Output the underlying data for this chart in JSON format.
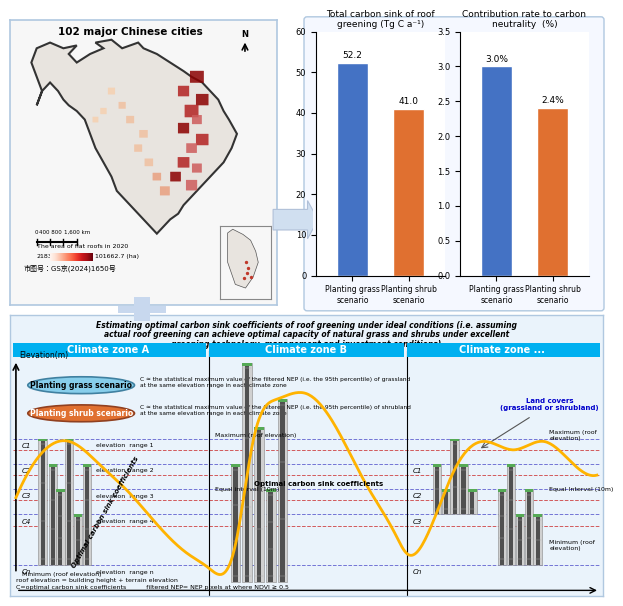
{
  "bar1_values": [
    52.2,
    41.0
  ],
  "bar1_colors": [
    "#4472C4",
    "#E07030"
  ],
  "bar1_labels": [
    "Planting grass\nscenario",
    "Planting shrub\nscenario"
  ],
  "bar1_title": "Total carbon sink of roof\ngreening (Tg C a⁻¹)",
  "bar1_ylim": [
    0,
    60
  ],
  "bar1_yticks": [
    0,
    10,
    20,
    30,
    40,
    50,
    60
  ],
  "bar1_annotations": [
    "52.2",
    "41.0"
  ],
  "bar2_values": [
    3.0,
    2.4
  ],
  "bar2_colors": [
    "#4472C4",
    "#E07030"
  ],
  "bar2_labels": [
    "Planting grass\nscenario",
    "Planting shrub\nscenario"
  ],
  "bar2_title": "Contribution rate to carbon\nneutrality  (%)",
  "bar2_ylim": [
    0,
    3.5
  ],
  "bar2_yticks": [
    0.0,
    0.5,
    1.0,
    1.5,
    2.0,
    2.5,
    3.0,
    3.5
  ],
  "bar2_annotations": [
    "3.0%",
    "2.4%"
  ],
  "map_title": "102 major Chinese cities",
  "map_credit": "市图号：GS京(2024)1650号",
  "bottom_title_line1": "Estimating optimal carbon sink coefficients of roof greening under ideal conditions (i.e. assuming",
  "bottom_title_line2": "actual roof greening can achieve optimal capacity of natural grass and shrubs under excellent",
  "bottom_title_line3": "greening technology, management and investment conditions)",
  "climate_a": "Climate zone A",
  "climate_b": "Climate zone B",
  "climate_c": "Climate zone ...",
  "grass_label": "Planting grass scenario",
  "shrub_label": "Planting shrub scenario",
  "grass_desc": "C ≈ the statistical maximum value of the filtered NEP (i.e. the 95th percentile) of grassland\nat the same elevation range in each climate zone",
  "shrub_desc": "C ≈ the statistical maximum value of the filtered NEP (i.e. the 95th percentile) of shrubland\nat the same elevation range in each climate zone",
  "elevation_label": "Elevation(m)",
  "land_cover_label": "Land covers\n(grassland or shrubland)",
  "elev_labels": [
    "elevation  range 1",
    "elevation  range 2",
    "elevation  range 3",
    "elevation  range 4",
    "elevation  range n"
  ],
  "C_labels_left": [
    "C1",
    "C2",
    "C3",
    "C4",
    "Cn"
  ],
  "C_labels_right": [
    "C1",
    "C2",
    "C3",
    "Cn"
  ],
  "max_label": "Maximum (roof elevation)",
  "equal_interval": "Equal interval (10m)",
  "min_label": "Minimum (roof elevation)",
  "max_label_r": "Maximum (roof\nelevation)",
  "equal_interval_r": "Equal Interval (10m)",
  "min_label_r": "Minimum (roof\nelevation)",
  "optimal_label_b": "Optimal carbon sink coefficients",
  "optimal_rotated": "Optimal carbon sink coefficients",
  "footer1": "roof elevation = building height + terrain elevation",
  "footer2": "C=optimal carbon sink coefficients          filtered NEP= NEP pixels at where NDVI ≥ 0.5",
  "climate_color": "#00B0F0",
  "bg_bottom": "#EAF3FB"
}
